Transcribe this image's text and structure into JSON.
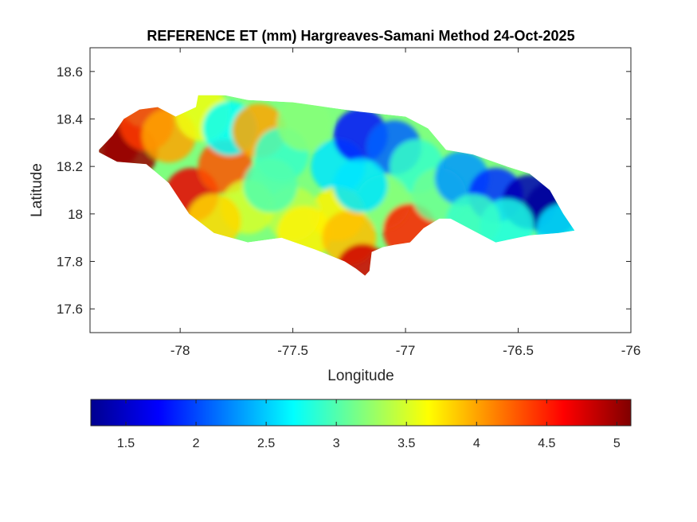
{
  "chart_data": {
    "type": "heatmap",
    "title": "REFERENCE ET (mm) Hargreaves-Samani Method  24-Oct-2025",
    "xlabel": "Longitude",
    "ylabel": "Latitude",
    "xlim": [
      -78.4,
      -76
    ],
    "ylim": [
      17.5,
      18.7
    ],
    "xticks": [
      -78,
      -77.5,
      -77,
      -76.5,
      -76
    ],
    "xtick_labels": [
      "-78",
      "-77.5",
      "-77",
      "-76.5",
      "-76"
    ],
    "yticks": [
      17.6,
      17.8,
      18,
      18.2,
      18.4,
      18.6
    ],
    "ytick_labels": [
      "17.6",
      "17.8",
      "18",
      "18.2",
      "18.4",
      "18.6"
    ],
    "grid": false,
    "colormap": "jet",
    "colorbar": {
      "location": "bottom",
      "range": [
        1.25,
        5.1
      ],
      "ticks": [
        1.5,
        2,
        2.5,
        3,
        3.5,
        4,
        4.5,
        5
      ],
      "tick_labels": [
        "1.5",
        "2",
        "2.5",
        "3",
        "3.5",
        "4",
        "4.5",
        "5"
      ]
    },
    "region": {
      "name": "Jamaica",
      "outline_lonlat": [
        [
          -78.36,
          18.27
        ],
        [
          -78.3,
          18.33
        ],
        [
          -78.25,
          18.4
        ],
        [
          -78.18,
          18.44
        ],
        [
          -78.1,
          18.45
        ],
        [
          -78.02,
          18.41
        ],
        [
          -77.93,
          18.45
        ],
        [
          -77.92,
          18.5
        ],
        [
          -77.8,
          18.5
        ],
        [
          -77.7,
          18.48
        ],
        [
          -77.5,
          18.47
        ],
        [
          -77.35,
          18.45
        ],
        [
          -77.2,
          18.43
        ],
        [
          -77.0,
          18.41
        ],
        [
          -76.9,
          18.36
        ],
        [
          -76.82,
          18.27
        ],
        [
          -76.7,
          18.25
        ],
        [
          -76.55,
          18.2
        ],
        [
          -76.45,
          18.17
        ],
        [
          -76.36,
          18.1
        ],
        [
          -76.3,
          18.0
        ],
        [
          -76.25,
          17.93
        ],
        [
          -76.32,
          17.92
        ],
        [
          -76.45,
          17.91
        ],
        [
          -76.6,
          17.88
        ],
        [
          -76.7,
          17.93
        ],
        [
          -76.8,
          17.98
        ],
        [
          -76.85,
          17.98
        ],
        [
          -76.92,
          17.94
        ],
        [
          -76.98,
          17.88
        ],
        [
          -77.05,
          17.87
        ],
        [
          -77.1,
          17.86
        ],
        [
          -77.15,
          17.84
        ],
        [
          -77.16,
          17.76
        ],
        [
          -77.18,
          17.74
        ],
        [
          -77.22,
          17.77
        ],
        [
          -77.27,
          17.8
        ],
        [
          -77.4,
          17.85
        ],
        [
          -77.55,
          17.9
        ],
        [
          -77.7,
          17.88
        ],
        [
          -77.85,
          17.92
        ],
        [
          -77.96,
          18.0
        ],
        [
          -78.05,
          18.13
        ],
        [
          -78.15,
          18.21
        ],
        [
          -78.28,
          18.22
        ],
        [
          -78.36,
          18.26
        ]
      ]
    },
    "field_samples": [
      {
        "lon": -78.3,
        "lat": 18.3,
        "value": 5.0
      },
      {
        "lon": -78.22,
        "lat": 18.26,
        "value": 5.0
      },
      {
        "lon": -78.15,
        "lat": 18.38,
        "value": 4.4
      },
      {
        "lon": -78.05,
        "lat": 18.33,
        "value": 4.0
      },
      {
        "lon": -77.95,
        "lat": 18.08,
        "value": 4.7
      },
      {
        "lon": -77.8,
        "lat": 18.2,
        "value": 4.3
      },
      {
        "lon": -77.9,
        "lat": 18.42,
        "value": 3.6
      },
      {
        "lon": -77.78,
        "lat": 18.36,
        "value": 2.7
      },
      {
        "lon": -77.65,
        "lat": 18.35,
        "value": 4.0
      },
      {
        "lon": -77.55,
        "lat": 18.25,
        "value": 2.9
      },
      {
        "lon": -77.45,
        "lat": 18.38,
        "value": 3.2
      },
      {
        "lon": -77.3,
        "lat": 18.2,
        "value": 2.6
      },
      {
        "lon": -77.2,
        "lat": 18.33,
        "value": 1.8
      },
      {
        "lon": -77.05,
        "lat": 18.28,
        "value": 2.1
      },
      {
        "lon": -76.95,
        "lat": 18.2,
        "value": 2.9
      },
      {
        "lon": -77.1,
        "lat": 18.05,
        "value": 3.2
      },
      {
        "lon": -77.3,
        "lat": 18.0,
        "value": 3.7
      },
      {
        "lon": -77.5,
        "lat": 18.0,
        "value": 3.4
      },
      {
        "lon": -77.7,
        "lat": 18.03,
        "value": 3.5
      },
      {
        "lon": -77.85,
        "lat": 17.97,
        "value": 3.8
      },
      {
        "lon": -77.45,
        "lat": 17.92,
        "value": 3.7
      },
      {
        "lon": -77.25,
        "lat": 17.9,
        "value": 3.9
      },
      {
        "lon": -77.19,
        "lat": 17.76,
        "value": 4.8
      },
      {
        "lon": -76.98,
        "lat": 17.93,
        "value": 4.5
      },
      {
        "lon": -76.85,
        "lat": 18.08,
        "value": 3.1
      },
      {
        "lon": -76.75,
        "lat": 18.15,
        "value": 2.3
      },
      {
        "lon": -76.6,
        "lat": 18.08,
        "value": 1.9
      },
      {
        "lon": -76.45,
        "lat": 18.05,
        "value": 1.4
      },
      {
        "lon": -76.35,
        "lat": 18.02,
        "value": 1.3
      },
      {
        "lon": -76.55,
        "lat": 17.95,
        "value": 2.8
      },
      {
        "lon": -76.7,
        "lat": 17.97,
        "value": 2.9
      },
      {
        "lon": -76.3,
        "lat": 17.93,
        "value": 2.6
      },
      {
        "lon": -77.6,
        "lat": 18.12,
        "value": 3.0
      },
      {
        "lon": -77.2,
        "lat": 18.12,
        "value": 2.6
      }
    ]
  }
}
